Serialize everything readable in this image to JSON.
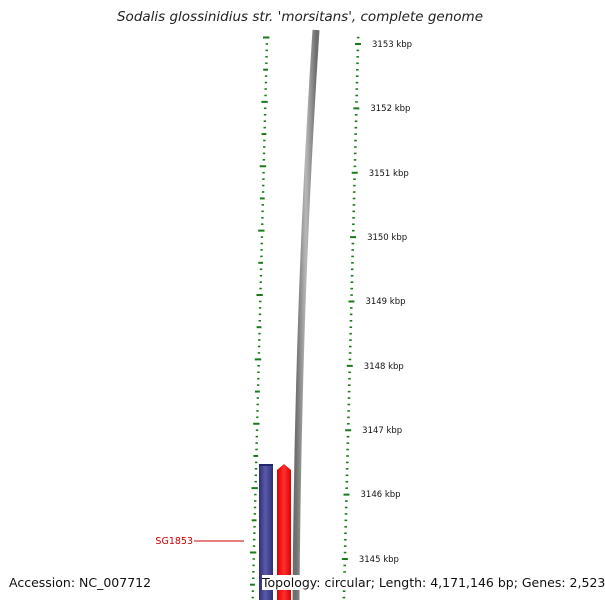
{
  "title": "Sodalis glossinidius str. 'morsitans', complete genome",
  "footer": {
    "accession": "Accession: NC_007712",
    "summary": "Topology: circular; Length: 4,171,146 bp; Genes: 2,523"
  },
  "ruler": {
    "unit": "kbp",
    "labels": [
      3153,
      3152,
      3151,
      3150,
      3149,
      3148,
      3147,
      3146,
      3145
    ],
    "tick_color": "#1a7a1a"
  },
  "features": [
    {
      "name": "",
      "strand": "minus",
      "color": "#3a3a8a",
      "label_color": ""
    },
    {
      "name": "SG1853",
      "strand": "plus",
      "color": "#ff0000",
      "label_color": "#cc0000"
    }
  ],
  "backbone_color": "#8a8a8a"
}
